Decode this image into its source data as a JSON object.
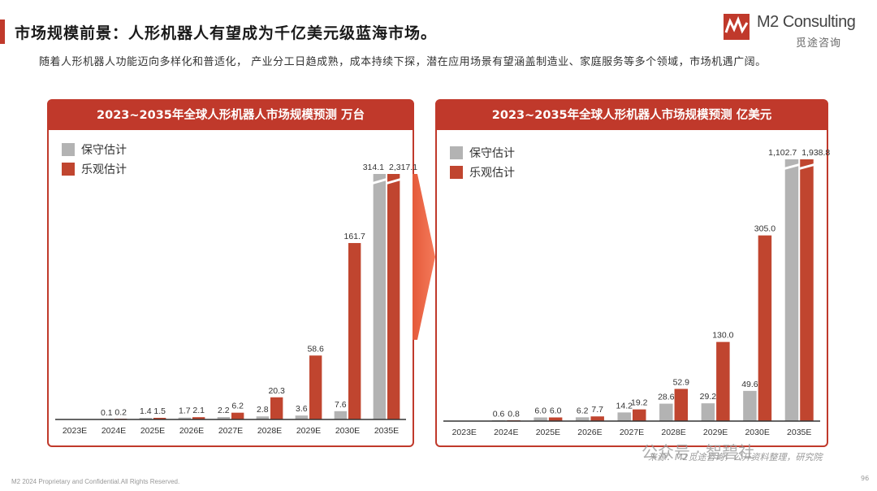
{
  "page": {
    "title": "市场规模前景：人形机器人有望成为千亿美元级蓝海市场。",
    "intro": "随着人形机器人功能迈向多样化和普适化， 产业分工日趋成熟，成本持续下探，潜在应用场景有望涵盖制造业、家庭服务等多个领域，市场机遇广阔。",
    "logo_en": "M2 Consulting",
    "logo_cn": "觅途咨询",
    "footer": "M2 2024 Proprietary and Confidential.All Rights Reserved.",
    "page_number": "96",
    "source": "来源：M2觅途咨询，公开资料整理，研究院",
    "watermark": "公众号 · 智碧社"
  },
  "colors": {
    "accent": "#c0392b",
    "conservative": "#b3b3b3",
    "optimistic": "#c0452f",
    "axis": "#333333"
  },
  "chart_data": [
    {
      "type": "bar",
      "title": "2023~2035年全球人形机器人市场规模预测 万台",
      "categories": [
        "2023E",
        "2024E",
        "2025E",
        "2026E",
        "2027E",
        "2028E",
        "2029E",
        "2030E",
        "2035E"
      ],
      "series": [
        {
          "name": "保守估计",
          "values": [
            null,
            0.1,
            1.4,
            1.7,
            2.2,
            2.8,
            3.6,
            7.6,
            314.1
          ],
          "labels": [
            "",
            "0.1",
            "1.4",
            "1.7",
            "2.2",
            "2.8",
            "3.6",
            "7.6",
            "314.1"
          ]
        },
        {
          "name": "乐观估计",
          "values": [
            null,
            0.2,
            1.5,
            2.1,
            6.2,
            20.3,
            58.6,
            161.7,
            2317.1
          ],
          "labels": [
            "",
            "0.2",
            "1.5",
            "2.1",
            "6.2",
            "20.3",
            "58.6",
            "161.7",
            "2,317.1"
          ]
        }
      ],
      "ylim": [
        0,
        225
      ],
      "axis_break": true,
      "legend": "top-left",
      "grid": false
    },
    {
      "type": "bar",
      "title": "2023~2035年全球人形机器人市场规模预测 亿美元",
      "categories": [
        "2023E",
        "2024E",
        "2025E",
        "2026E",
        "2027E",
        "2028E",
        "2029E",
        "2030E",
        "2035E"
      ],
      "series": [
        {
          "name": "保守估计",
          "values": [
            null,
            0.6,
            6.0,
            6.2,
            14.2,
            28.6,
            29.2,
            49.6,
            1102.7
          ],
          "labels": [
            "",
            "0.6",
            "6.0",
            "6.2",
            "14.2",
            "28.6",
            "29.2",
            "49.6",
            "1,102.7"
          ]
        },
        {
          "name": "乐观估计",
          "values": [
            null,
            0.8,
            6.0,
            7.7,
            19.2,
            52.9,
            130.0,
            305.0,
            1938.8
          ],
          "labels": [
            "",
            "0.8",
            "6.0",
            "7.7",
            "19.2",
            "52.9",
            "130.0",
            "305.0",
            "1,938.8"
          ]
        }
      ],
      "ylim": [
        0,
        430
      ],
      "axis_break": true,
      "legend": "top-left",
      "grid": false
    }
  ]
}
